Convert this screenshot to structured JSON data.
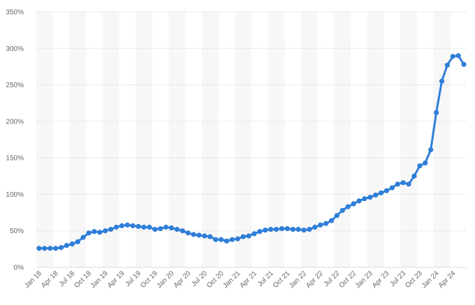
{
  "chart_data": {
    "type": "line",
    "y_tick_labels": [
      "0%",
      "50%",
      "100%",
      "150%",
      "200%",
      "250%",
      "300%",
      "350%"
    ],
    "ylim": [
      0,
      350
    ],
    "x_tick_labels": [
      "Jan 18",
      "Apr 18",
      "Jul 18",
      "Oct 18",
      "Jan 19",
      "Apr 19",
      "Jul 19",
      "Oct 19",
      "Jan 20",
      "Apr 20",
      "Jul 20",
      "Oct 20",
      "Jan 21",
      "Apr 21",
      "Jul 21",
      "Oct 21",
      "Jan 22",
      "Apr 22",
      "Jul 22",
      "Oct 22",
      "Jan 23",
      "Apr 23",
      "Jul 23",
      "Oct 23",
      "Jan 24",
      "Apr 24"
    ],
    "grid": "horizontal",
    "alternating_column_bands": true,
    "x": [
      "Jan 18",
      "Feb 18",
      "Mar 18",
      "Apr 18",
      "May 18",
      "Jun 18",
      "Jul 18",
      "Aug 18",
      "Sep 18",
      "Oct 18",
      "Nov 18",
      "Dec 18",
      "Jan 19",
      "Feb 19",
      "Mar 19",
      "Apr 19",
      "May 19",
      "Jun 19",
      "Jul 19",
      "Aug 19",
      "Sep 19",
      "Oct 19",
      "Nov 19",
      "Dec 19",
      "Jan 20",
      "Feb 20",
      "Mar 20",
      "Apr 20",
      "May 20",
      "Jun 20",
      "Jul 20",
      "Aug 20",
      "Sep 20",
      "Oct 20",
      "Nov 20",
      "Dec 20",
      "Jan 21",
      "Feb 21",
      "Mar 21",
      "Apr 21",
      "May 21",
      "Jun 21",
      "Jul 21",
      "Aug 21",
      "Sep 21",
      "Oct 21",
      "Nov 21",
      "Dec 21",
      "Jan 22",
      "Feb 22",
      "Mar 22",
      "Apr 22",
      "May 22",
      "Jun 22",
      "Jul 22",
      "Aug 22",
      "Sep 22",
      "Oct 22",
      "Nov 22",
      "Dec 22",
      "Jan 23",
      "Feb 23",
      "Mar 23",
      "Apr 23",
      "May 23",
      "Jun 23",
      "Jul 23",
      "Aug 23",
      "Sep 23",
      "Oct 23",
      "Nov 23",
      "Dec 23",
      "Jan 24",
      "Feb 24",
      "Mar 24",
      "Apr 24",
      "May 24",
      "Jun 24"
    ],
    "series": [
      {
        "color": "#2f7ed8",
        "values": [
          26,
          26,
          26,
          26,
          27,
          30,
          32,
          35,
          41,
          47,
          49,
          48,
          50,
          52,
          55,
          57,
          58,
          57,
          56,
          55,
          55,
          52,
          53,
          55,
          54,
          52,
          50,
          47,
          45,
          44,
          43,
          42,
          38,
          38,
          36,
          38,
          39,
          42,
          43,
          46,
          49,
          51,
          52,
          52,
          53,
          53,
          52,
          52,
          51,
          52,
          55,
          58,
          60,
          64,
          71,
          78,
          83,
          87,
          91,
          94,
          96,
          99,
          102,
          105,
          109,
          114,
          116,
          114,
          125,
          139,
          143,
          161,
          212,
          255,
          277,
          289,
          290,
          278
        ]
      }
    ]
  }
}
